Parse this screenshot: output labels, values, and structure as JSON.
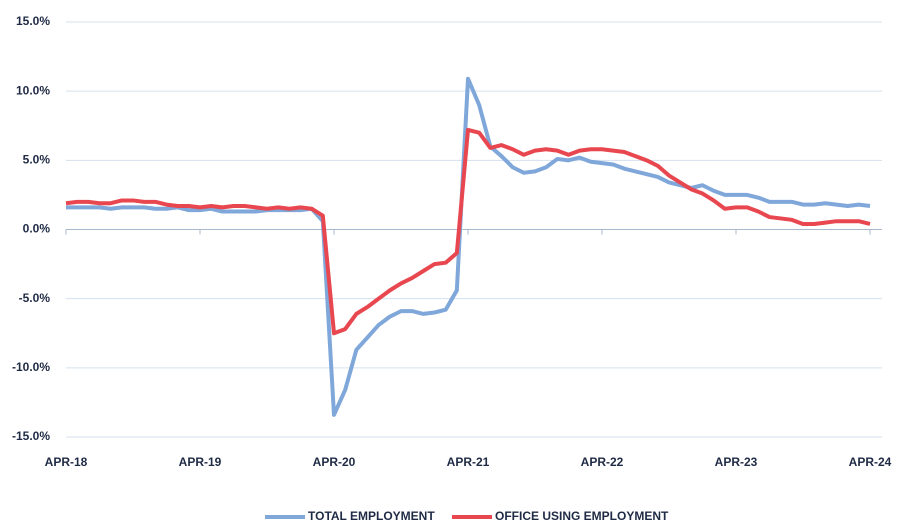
{
  "chart_data": {
    "type": "line",
    "categories": [
      "APR-18",
      null,
      null,
      null,
      null,
      null,
      null,
      null,
      null,
      null,
      null,
      null,
      "APR-19",
      null,
      null,
      null,
      null,
      null,
      null,
      null,
      null,
      null,
      null,
      null,
      "APR-20",
      null,
      null,
      null,
      null,
      null,
      null,
      null,
      null,
      null,
      null,
      null,
      "APR-21",
      null,
      null,
      null,
      null,
      null,
      null,
      null,
      null,
      null,
      null,
      null,
      "APR-22",
      null,
      null,
      null,
      null,
      null,
      null,
      null,
      null,
      null,
      null,
      null,
      "APR-23",
      null,
      null,
      null,
      null,
      null,
      null,
      null,
      null,
      null,
      null,
      null,
      "APR-24"
    ],
    "series": [
      {
        "name": "TOTAL EMPLOYMENT",
        "color": "#7fa7d9",
        "values": [
          1.6,
          1.6,
          1.6,
          1.6,
          1.5,
          1.6,
          1.6,
          1.6,
          1.5,
          1.5,
          1.6,
          1.4,
          1.4,
          1.5,
          1.3,
          1.3,
          1.3,
          1.3,
          1.4,
          1.4,
          1.4,
          1.4,
          1.5,
          0.6,
          -13.4,
          -11.6,
          -8.7,
          -7.8,
          -6.9,
          -6.3,
          -5.9,
          -5.9,
          -6.1,
          -6.0,
          -5.8,
          -4.4,
          10.9,
          9.0,
          6.0,
          5.3,
          4.5,
          4.1,
          4.2,
          4.5,
          5.1,
          5.0,
          5.2,
          4.9,
          4.8,
          4.7,
          4.4,
          4.2,
          4.0,
          3.8,
          3.4,
          3.2,
          3.0,
          3.2,
          2.8,
          2.5,
          2.5,
          2.5,
          2.3,
          2.0,
          2.0,
          2.0,
          1.8,
          1.8,
          1.9,
          1.8,
          1.7,
          1.8,
          1.7
        ]
      },
      {
        "name": "OFFICE USING EMPLOYMENT",
        "color": "#e8474f",
        "values": [
          1.9,
          2.0,
          2.0,
          1.9,
          1.9,
          2.1,
          2.1,
          2.0,
          2.0,
          1.8,
          1.7,
          1.7,
          1.6,
          1.7,
          1.6,
          1.7,
          1.7,
          1.6,
          1.5,
          1.6,
          1.5,
          1.6,
          1.5,
          1.0,
          -7.5,
          -7.2,
          -6.1,
          -5.6,
          -5.0,
          -4.4,
          -3.9,
          -3.5,
          -3.0,
          -2.5,
          -2.4,
          -1.7,
          7.2,
          7.0,
          5.9,
          6.1,
          5.8,
          5.4,
          5.7,
          5.8,
          5.7,
          5.4,
          5.7,
          5.8,
          5.8,
          5.7,
          5.6,
          5.3,
          5.0,
          4.6,
          3.9,
          3.4,
          2.9,
          2.6,
          2.1,
          1.5,
          1.6,
          1.6,
          1.3,
          0.9,
          0.8,
          0.7,
          0.4,
          0.4,
          0.5,
          0.6,
          0.6,
          0.6,
          0.4
        ]
      }
    ],
    "ylim": [
      -15,
      15
    ],
    "yticks": [
      {
        "value": -15,
        "label": "-15.0%"
      },
      {
        "value": -10,
        "label": "-10.0%"
      },
      {
        "value": -5,
        "label": "-5.0%"
      },
      {
        "value": 0,
        "label": "0.0%"
      },
      {
        "value": 5,
        "label": "5.0%"
      },
      {
        "value": 10,
        "label": "10.0%"
      },
      {
        "value": 15,
        "label": "15.0%"
      }
    ],
    "grid": true
  }
}
